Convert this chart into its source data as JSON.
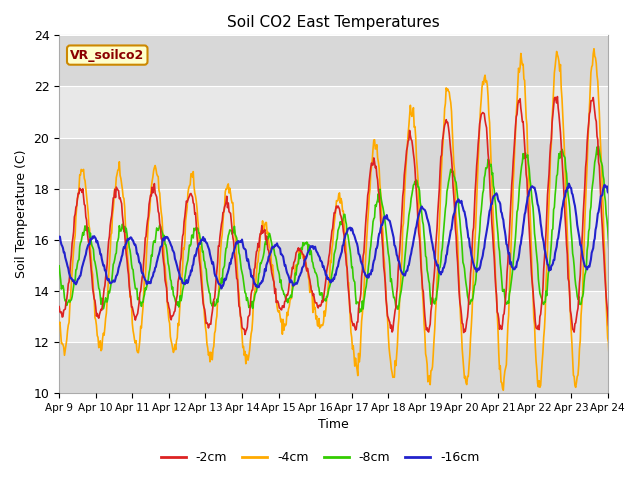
{
  "title": "Soil CO2 East Temperatures",
  "ylabel": "Soil Temperature (C)",
  "xlabel": "Time",
  "annotation": "VR_soilco2",
  "ylim": [
    10,
    24
  ],
  "xlim": [
    0,
    15
  ],
  "colors": {
    "neg2cm": "#dd2222",
    "neg4cm": "#ffaa00",
    "neg8cm": "#33cc00",
    "neg16cm": "#2222cc"
  },
  "xtick_labels": [
    "Apr 9",
    "Apr 10",
    "Apr 11",
    "Apr 12",
    "Apr 13",
    "Apr 14",
    "Apr 15",
    "Apr 16",
    "Apr 17",
    "Apr 18",
    "Apr 19",
    "Apr 20",
    "Apr 21",
    "Apr 22",
    "Apr 23",
    "Apr 24"
  ],
  "ytick_labels": [
    "10",
    "12",
    "14",
    "16",
    "18",
    "20",
    "22",
    "24"
  ],
  "legend_items": [
    "-2cm",
    "-4cm",
    "-8cm",
    "-16cm"
  ],
  "band_colors_even": "#e8e8e8",
  "band_colors_odd": "#d8d8d8",
  "plot_bg": "#e0e0e0",
  "fig_bg": "#ffffff"
}
